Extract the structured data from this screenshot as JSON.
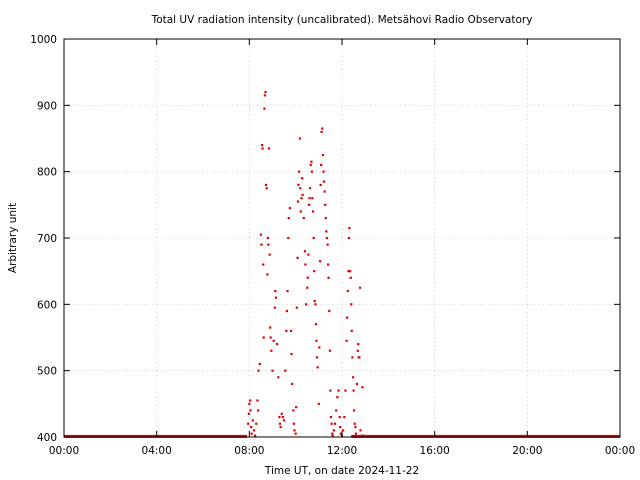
{
  "chart_data": {
    "type": "scatter",
    "title": "Total UV radiation intensity (uncalibrated). Metsähovi Radio Observatory",
    "xlabel": "Time UT, on date 2024-11-22",
    "ylabel": "Arbitrary unit",
    "x_unit": "hours UT",
    "xlim": [
      0,
      24
    ],
    "ylim": [
      400,
      1000
    ],
    "grid": true,
    "legend": "none",
    "x_ticks": [
      {
        "value": 0,
        "label": "00:00"
      },
      {
        "value": 4,
        "label": "04:00"
      },
      {
        "value": 8,
        "label": "08:00"
      },
      {
        "value": 12,
        "label": "12:00"
      },
      {
        "value": 16,
        "label": "16:00"
      },
      {
        "value": 20,
        "label": "20:00"
      },
      {
        "value": 24,
        "label": "00:00"
      }
    ],
    "y_ticks": [
      {
        "value": 400,
        "label": "400"
      },
      {
        "value": 500,
        "label": "500"
      },
      {
        "value": 600,
        "label": "600"
      },
      {
        "value": 700,
        "label": "700"
      },
      {
        "value": 800,
        "label": "800"
      },
      {
        "value": 900,
        "label": "900"
      },
      {
        "value": 1000,
        "label": "1000"
      }
    ],
    "series": [
      {
        "color": "#e00000",
        "baseline_segments": [
          {
            "x_start": 0.0,
            "x_end": 7.9,
            "y": 401
          },
          {
            "x_start": 12.4,
            "x_end": 24.0,
            "y": 401
          }
        ],
        "points": [
          [
            7.95,
            420
          ],
          [
            7.98,
            435
          ],
          [
            8.0,
            450
          ],
          [
            8.03,
            455
          ],
          [
            8.05,
            440
          ],
          [
            8.08,
            415
          ],
          [
            8.1,
            405
          ],
          [
            8.15,
            425
          ],
          [
            8.2,
            410
          ],
          [
            8.25,
            402
          ],
          [
            8.3,
            420
          ],
          [
            8.35,
            455
          ],
          [
            8.38,
            440
          ],
          [
            8.4,
            500
          ],
          [
            8.45,
            510
          ],
          [
            8.5,
            705
          ],
          [
            8.52,
            690
          ],
          [
            8.55,
            840
          ],
          [
            8.57,
            835
          ],
          [
            8.6,
            660
          ],
          [
            8.62,
            550
          ],
          [
            8.65,
            895
          ],
          [
            8.67,
            915
          ],
          [
            8.7,
            920
          ],
          [
            8.72,
            780
          ],
          [
            8.75,
            775
          ],
          [
            8.78,
            645
          ],
          [
            8.8,
            700
          ],
          [
            8.82,
            690
          ],
          [
            8.85,
            835
          ],
          [
            8.88,
            675
          ],
          [
            8.9,
            565
          ],
          [
            8.92,
            550
          ],
          [
            8.95,
            530
          ],
          [
            9.0,
            500
          ],
          [
            9.05,
            545
          ],
          [
            9.1,
            595
          ],
          [
            9.12,
            620
          ],
          [
            9.15,
            610
          ],
          [
            9.2,
            540
          ],
          [
            9.25,
            490
          ],
          [
            9.3,
            430
          ],
          [
            9.32,
            420
          ],
          [
            9.35,
            415
          ],
          [
            9.4,
            435
          ],
          [
            9.45,
            430
          ],
          [
            9.5,
            425
          ],
          [
            9.55,
            500
          ],
          [
            9.6,
            560
          ],
          [
            9.62,
            590
          ],
          [
            9.65,
            620
          ],
          [
            9.68,
            700
          ],
          [
            9.7,
            730
          ],
          [
            9.75,
            745
          ],
          [
            9.8,
            560
          ],
          [
            9.82,
            525
          ],
          [
            9.85,
            480
          ],
          [
            9.9,
            440
          ],
          [
            9.92,
            420
          ],
          [
            9.95,
            410
          ],
          [
            10.0,
            405
          ],
          [
            10.02,
            445
          ],
          [
            10.05,
            595
          ],
          [
            10.08,
            670
          ],
          [
            10.1,
            755
          ],
          [
            10.12,
            780
          ],
          [
            10.15,
            800
          ],
          [
            10.18,
            850
          ],
          [
            10.2,
            775
          ],
          [
            10.22,
            740
          ],
          [
            10.25,
            760
          ],
          [
            10.28,
            790
          ],
          [
            10.3,
            765
          ],
          [
            10.35,
            730
          ],
          [
            10.4,
            680
          ],
          [
            10.42,
            660
          ],
          [
            10.45,
            600
          ],
          [
            10.5,
            625
          ],
          [
            10.52,
            640
          ],
          [
            10.55,
            675
          ],
          [
            10.58,
            750
          ],
          [
            10.6,
            760
          ],
          [
            10.62,
            775
          ],
          [
            10.65,
            810
          ],
          [
            10.68,
            815
          ],
          [
            10.7,
            800
          ],
          [
            10.72,
            760
          ],
          [
            10.75,
            740
          ],
          [
            10.78,
            700
          ],
          [
            10.8,
            650
          ],
          [
            10.82,
            605
          ],
          [
            10.85,
            600
          ],
          [
            10.88,
            570
          ],
          [
            10.9,
            545
          ],
          [
            10.92,
            520
          ],
          [
            10.95,
            505
          ],
          [
            11.0,
            450
          ],
          [
            11.02,
            535
          ],
          [
            11.05,
            665
          ],
          [
            11.08,
            780
          ],
          [
            11.1,
            810
          ],
          [
            11.12,
            860
          ],
          [
            11.15,
            865
          ],
          [
            11.18,
            825
          ],
          [
            11.2,
            800
          ],
          [
            11.22,
            785
          ],
          [
            11.25,
            770
          ],
          [
            11.28,
            750
          ],
          [
            11.3,
            730
          ],
          [
            11.32,
            710
          ],
          [
            11.35,
            700
          ],
          [
            11.38,
            690
          ],
          [
            11.4,
            660
          ],
          [
            11.42,
            640
          ],
          [
            11.45,
            590
          ],
          [
            11.48,
            530
          ],
          [
            11.5,
            470
          ],
          [
            11.52,
            430
          ],
          [
            11.55,
            420
          ],
          [
            11.58,
            405
          ],
          [
            11.6,
            402
          ],
          [
            11.65,
            410
          ],
          [
            11.7,
            420
          ],
          [
            11.75,
            440
          ],
          [
            11.8,
            460
          ],
          [
            11.85,
            470
          ],
          [
            11.9,
            430
          ],
          [
            11.92,
            415
          ],
          [
            11.95,
            405
          ],
          [
            12.0,
            402
          ],
          [
            12.05,
            410
          ],
          [
            12.1,
            430
          ],
          [
            12.15,
            470
          ],
          [
            12.2,
            545
          ],
          [
            12.22,
            580
          ],
          [
            12.25,
            620
          ],
          [
            12.28,
            650
          ],
          [
            12.3,
            700
          ],
          [
            12.32,
            715
          ],
          [
            12.35,
            650
          ],
          [
            12.38,
            640
          ],
          [
            12.4,
            600
          ],
          [
            12.42,
            560
          ],
          [
            12.45,
            520
          ],
          [
            12.48,
            490
          ],
          [
            12.5,
            470
          ],
          [
            12.52,
            440
          ],
          [
            12.55,
            420
          ],
          [
            12.58,
            415
          ],
          [
            12.6,
            405
          ],
          [
            12.65,
            480
          ],
          [
            12.68,
            530
          ],
          [
            12.7,
            540
          ],
          [
            12.72,
            520
          ],
          [
            12.75,
            520
          ],
          [
            12.78,
            625
          ],
          [
            12.8,
            410
          ],
          [
            12.85,
            402
          ],
          [
            12.88,
            475
          ],
          [
            12.9,
            402
          ]
        ]
      }
    ]
  }
}
